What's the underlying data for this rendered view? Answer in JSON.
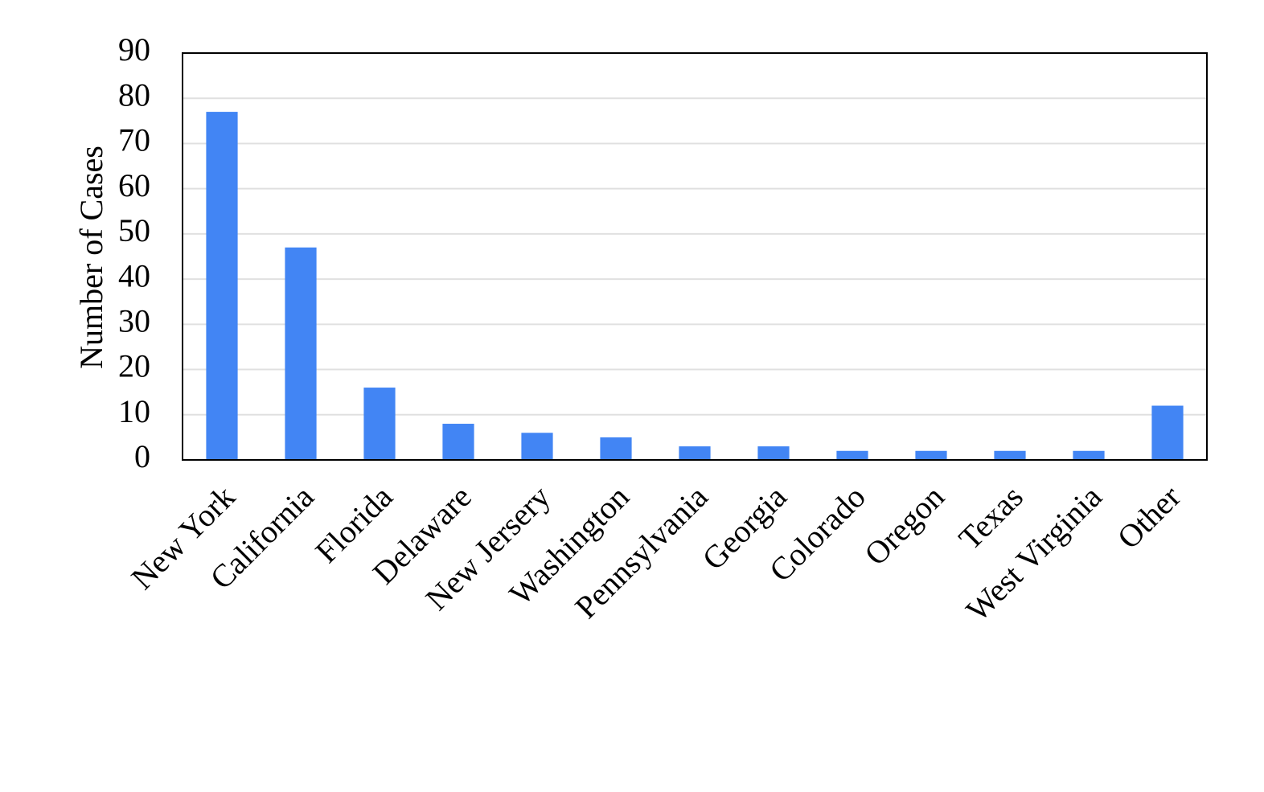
{
  "chart_data": {
    "type": "bar",
    "y_label": "Number of Cases",
    "categories": [
      "New York",
      "California",
      "Florida",
      "Delaware",
      "New Jersery",
      "Washington",
      "Pennsylvania",
      "Georgia",
      "Colorado",
      "Oregon",
      "Texas",
      "West Virginia",
      "Other"
    ],
    "values": [
      77,
      47,
      16,
      8,
      6,
      5,
      3,
      3,
      2,
      2,
      2,
      2,
      12
    ],
    "color": "#4285f4",
    "ylim": [
      0,
      90
    ],
    "yticks": [
      0,
      10,
      20,
      30,
      40,
      50,
      60,
      70,
      80,
      90
    ],
    "grid": true
  }
}
